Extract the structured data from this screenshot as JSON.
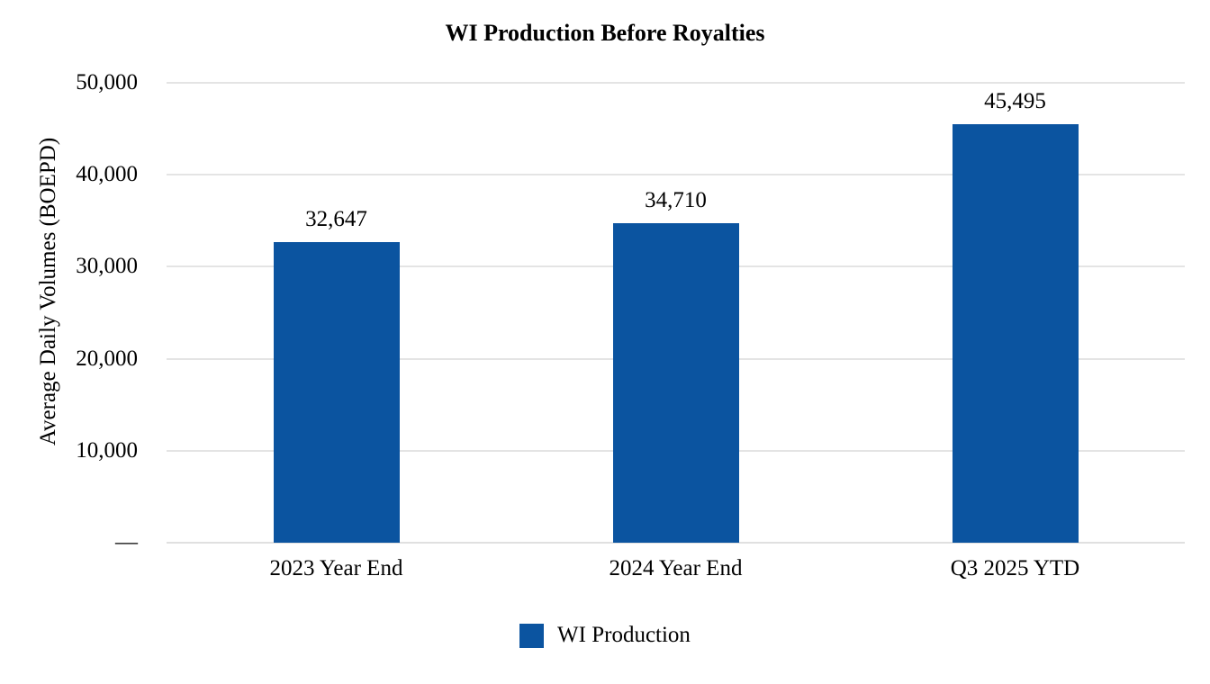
{
  "chart_data": {
    "type": "bar",
    "title": "WI Production Before Royalties",
    "categories": [
      "2023 Year End",
      "2024 Year End",
      "Q3 2025 YTD"
    ],
    "series": [
      {
        "name": "WI Production",
        "values": [
          32647,
          34710,
          45495
        ]
      }
    ],
    "value_labels": [
      "32,647",
      "34,710",
      "45,495"
    ],
    "xlabel": "",
    "ylabel": "Average Daily Volumes (BOEPD)",
    "ylim": [
      0,
      50000
    ],
    "yticks": [
      {
        "value": 50000,
        "label": "50,000"
      },
      {
        "value": 40000,
        "label": "40,000"
      },
      {
        "value": 30000,
        "label": "30,000"
      },
      {
        "value": 20000,
        "label": "20,000"
      },
      {
        "value": 10000,
        "label": "10,000"
      },
      {
        "value": 0,
        "label": "—"
      }
    ],
    "grid": "horizontal",
    "legend": {
      "position": "bottom",
      "entries": [
        {
          "label": "WI Production",
          "color": "#0B54A0"
        }
      ]
    }
  },
  "colors": {
    "bar": "#0B54A0",
    "gridline": "#E4E4E4",
    "axis_line": "#E0E0E0",
    "text": "#000000",
    "background": "#FFFFFF"
  }
}
